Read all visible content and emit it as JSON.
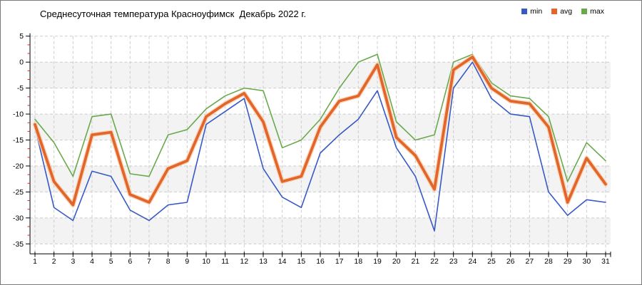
{
  "chart_data": {
    "type": "line",
    "title": "Среднесуточная температура Красноуфимск  Декабрь 2022 г.",
    "x": [
      1,
      2,
      3,
      4,
      5,
      6,
      7,
      8,
      9,
      10,
      11,
      12,
      13,
      14,
      15,
      16,
      17,
      18,
      19,
      20,
      21,
      22,
      23,
      24,
      25,
      26,
      27,
      28,
      29,
      30,
      31
    ],
    "xlabel": "",
    "ylabel": "",
    "ylim": [
      -35,
      5
    ],
    "y_ticks": [
      5,
      0,
      -5,
      -10,
      -15,
      -20,
      -25,
      -30,
      -35
    ],
    "grid": "dashed",
    "legend_position": "top-right",
    "series": [
      {
        "name": "min",
        "color": "#3659c5",
        "values": [
          -12.5,
          -28,
          -30.5,
          -21,
          -22,
          -28.5,
          -30.5,
          -27.5,
          -27,
          -12,
          -9.5,
          -7,
          -20.5,
          -26,
          -28,
          -17.5,
          -14,
          -11,
          -5.5,
          -16.5,
          -22,
          -32.5,
          -5,
          0,
          -7,
          -10,
          -10.5,
          -25,
          -29.5,
          -26.5,
          -27
        ]
      },
      {
        "name": "avg",
        "color": "#e2662c",
        "values": [
          -12,
          -23,
          -27.5,
          -14,
          -13.5,
          -25.5,
          -27,
          -20.5,
          -19,
          -10.5,
          -8,
          -6,
          -11.5,
          -23,
          -22,
          -12.5,
          -7.5,
          -6.5,
          -0.5,
          -14.5,
          -18,
          -24.5,
          -1.5,
          1,
          -5,
          -7.5,
          -8,
          -12.5,
          -27,
          -18.5,
          -23.5
        ]
      },
      {
        "name": "max",
        "color": "#69a94b",
        "values": [
          -11,
          -15.5,
          -22,
          -10.5,
          -10,
          -21.5,
          -22,
          -14,
          -13,
          -9,
          -6.5,
          -5,
          -5.5,
          -16.5,
          -15,
          -11,
          -5,
          0,
          1.5,
          -11.5,
          -15,
          -14,
          0,
          1.5,
          -4,
          -6.5,
          -7,
          -10.5,
          -23,
          -15.5,
          -19
        ]
      }
    ],
    "colors": {
      "grid": "#cccccc",
      "band": "#f3f3f3",
      "axis": "#000000",
      "minor_tick": "#cc2a2a",
      "avg_halo": "#f7d0ae",
      "tick_text": "#000000"
    }
  }
}
